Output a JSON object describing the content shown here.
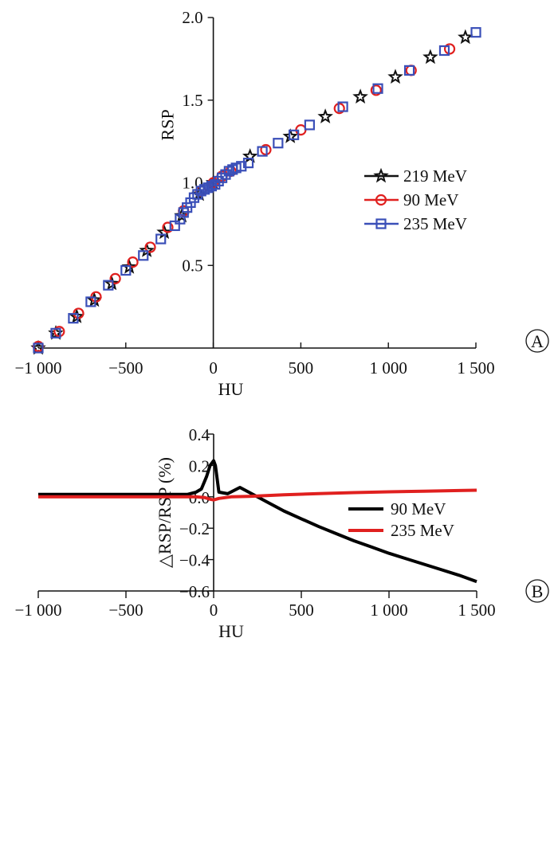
{
  "chart_data": [
    {
      "type": "scatter",
      "panel_label": "A",
      "xlabel": "HU",
      "ylabel": "RSP",
      "xlim": [
        -1000,
        1500
      ],
      "ylim": [
        0,
        2.0
      ],
      "xticks": [
        -1000,
        -500,
        0,
        500,
        1000,
        1500
      ],
      "xtick_labels": [
        "−1 000",
        "−500",
        "0",
        "500",
        "1 000",
        "1 500"
      ],
      "yticks": [
        0.5,
        1.0,
        1.5,
        2.0
      ],
      "ytick_labels": [
        "0.5",
        "1.0",
        "1.5",
        "2.0"
      ],
      "legend_position": "right",
      "series": [
        {
          "name": "219 MeV",
          "marker": "star",
          "color": "#111111",
          "x": [
            -1000,
            -900,
            -780,
            -680,
            -580,
            -480,
            -380,
            -280,
            -180,
            -80,
            0,
            210,
            440,
            640,
            840,
            1040,
            1240,
            1440
          ],
          "y": [
            0.0,
            0.09,
            0.19,
            0.29,
            0.39,
            0.49,
            0.59,
            0.7,
            0.8,
            0.93,
            1.0,
            1.16,
            1.28,
            1.4,
            1.52,
            1.64,
            1.76,
            1.88
          ]
        },
        {
          "name": "90 MeV",
          "marker": "circle",
          "color": "#e0201f",
          "x": [
            -1000,
            -880,
            -770,
            -670,
            -560,
            -460,
            -360,
            -260,
            -170,
            -70,
            0,
            50,
            100,
            300,
            500,
            720,
            930,
            1130,
            1350
          ],
          "y": [
            0.01,
            0.1,
            0.21,
            0.31,
            0.42,
            0.52,
            0.61,
            0.73,
            0.83,
            0.95,
            1.0,
            1.04,
            1.07,
            1.2,
            1.32,
            1.45,
            1.56,
            1.68,
            1.81
          ]
        },
        {
          "name": "235 MeV",
          "marker": "square",
          "color": "#3a4fb8",
          "x": [
            -1000,
            -900,
            -800,
            -700,
            -600,
            -500,
            -400,
            -300,
            -220,
            -190,
            -170,
            -150,
            -130,
            -110,
            -90,
            -70,
            -50,
            -30,
            -10,
            10,
            30,
            50,
            70,
            90,
            110,
            130,
            160,
            200,
            280,
            370,
            460,
            550,
            740,
            940,
            1120,
            1320,
            1500
          ],
          "y": [
            0.0,
            0.09,
            0.18,
            0.28,
            0.38,
            0.47,
            0.56,
            0.66,
            0.74,
            0.78,
            0.82,
            0.85,
            0.88,
            0.91,
            0.93,
            0.95,
            0.96,
            0.97,
            0.98,
            0.99,
            1.01,
            1.03,
            1.05,
            1.07,
            1.08,
            1.09,
            1.1,
            1.12,
            1.19,
            1.24,
            1.29,
            1.35,
            1.46,
            1.57,
            1.68,
            1.8,
            1.91
          ]
        }
      ]
    },
    {
      "type": "line",
      "panel_label": "B",
      "xlabel": "HU",
      "ylabel": "△RSP/RSP (%)",
      "xlim": [
        -1000,
        1500
      ],
      "ylim": [
        -0.6,
        0.4
      ],
      "xticks": [
        -1000,
        -500,
        0,
        500,
        1000,
        1500
      ],
      "xtick_labels": [
        "−1 000",
        "−500",
        "0",
        "500",
        "1 000",
        "1 500"
      ],
      "yticks": [
        -0.6,
        -0.4,
        -0.2,
        0.0,
        0.2,
        0.4
      ],
      "ytick_labels": [
        "−0.6",
        "−0.4",
        "−0.2",
        "0.0",
        "0.2",
        "0.4"
      ],
      "legend_position": "top-right",
      "series": [
        {
          "name": "90 MeV",
          "color": "#000000",
          "x": [
            -1000,
            -200,
            -150,
            -100,
            -70,
            -40,
            -20,
            0,
            10,
            30,
            80,
            150,
            200,
            300,
            400,
            500,
            600,
            700,
            800,
            900,
            1000,
            1100,
            1200,
            1300,
            1400,
            1500
          ],
          "y": [
            0.015,
            0.015,
            0.015,
            0.03,
            0.05,
            0.13,
            0.2,
            0.23,
            0.2,
            0.03,
            0.02,
            0.06,
            0.03,
            -0.03,
            -0.09,
            -0.14,
            -0.19,
            -0.235,
            -0.28,
            -0.32,
            -0.36,
            -0.395,
            -0.43,
            -0.465,
            -0.5,
            -0.54
          ]
        },
        {
          "name": "235 MeV",
          "color": "#e0201f",
          "x": [
            -1000,
            -100,
            -50,
            -20,
            0,
            30,
            100,
            200,
            400,
            600,
            800,
            1000,
            1200,
            1400,
            1500
          ],
          "y": [
            0.0,
            0.0,
            -0.005,
            -0.015,
            -0.02,
            -0.01,
            0.0,
            0.003,
            0.013,
            0.021,
            0.027,
            0.032,
            0.036,
            0.04,
            0.042
          ]
        }
      ]
    }
  ]
}
